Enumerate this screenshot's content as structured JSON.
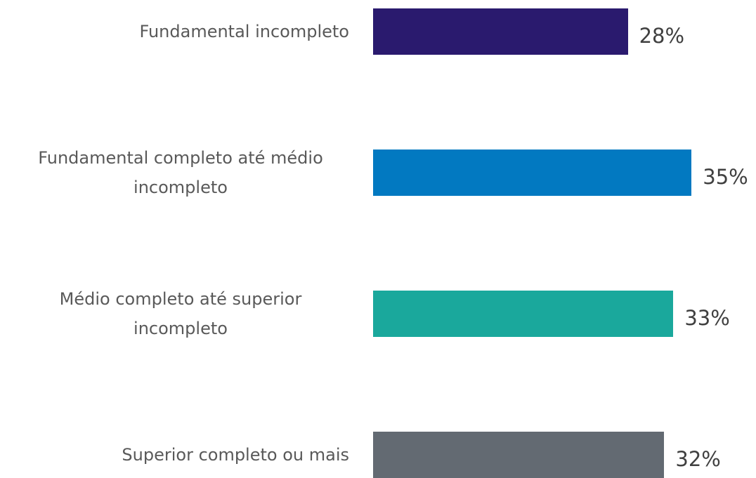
{
  "chart_data": {
    "type": "bar",
    "orientation": "horizontal",
    "categories": [
      "Fundamental incompleto",
      "Fundamental completo até médio incompleto",
      "Médio completo até superior incompleto",
      "Superior completo ou mais"
    ],
    "values": [
      28,
      35,
      33,
      32
    ],
    "value_labels": [
      "28%",
      "35%",
      "33%",
      "32%"
    ],
    "colors": [
      "#2a1a6e",
      "#0279c1",
      "#1aa89c",
      "#636a72"
    ]
  }
}
